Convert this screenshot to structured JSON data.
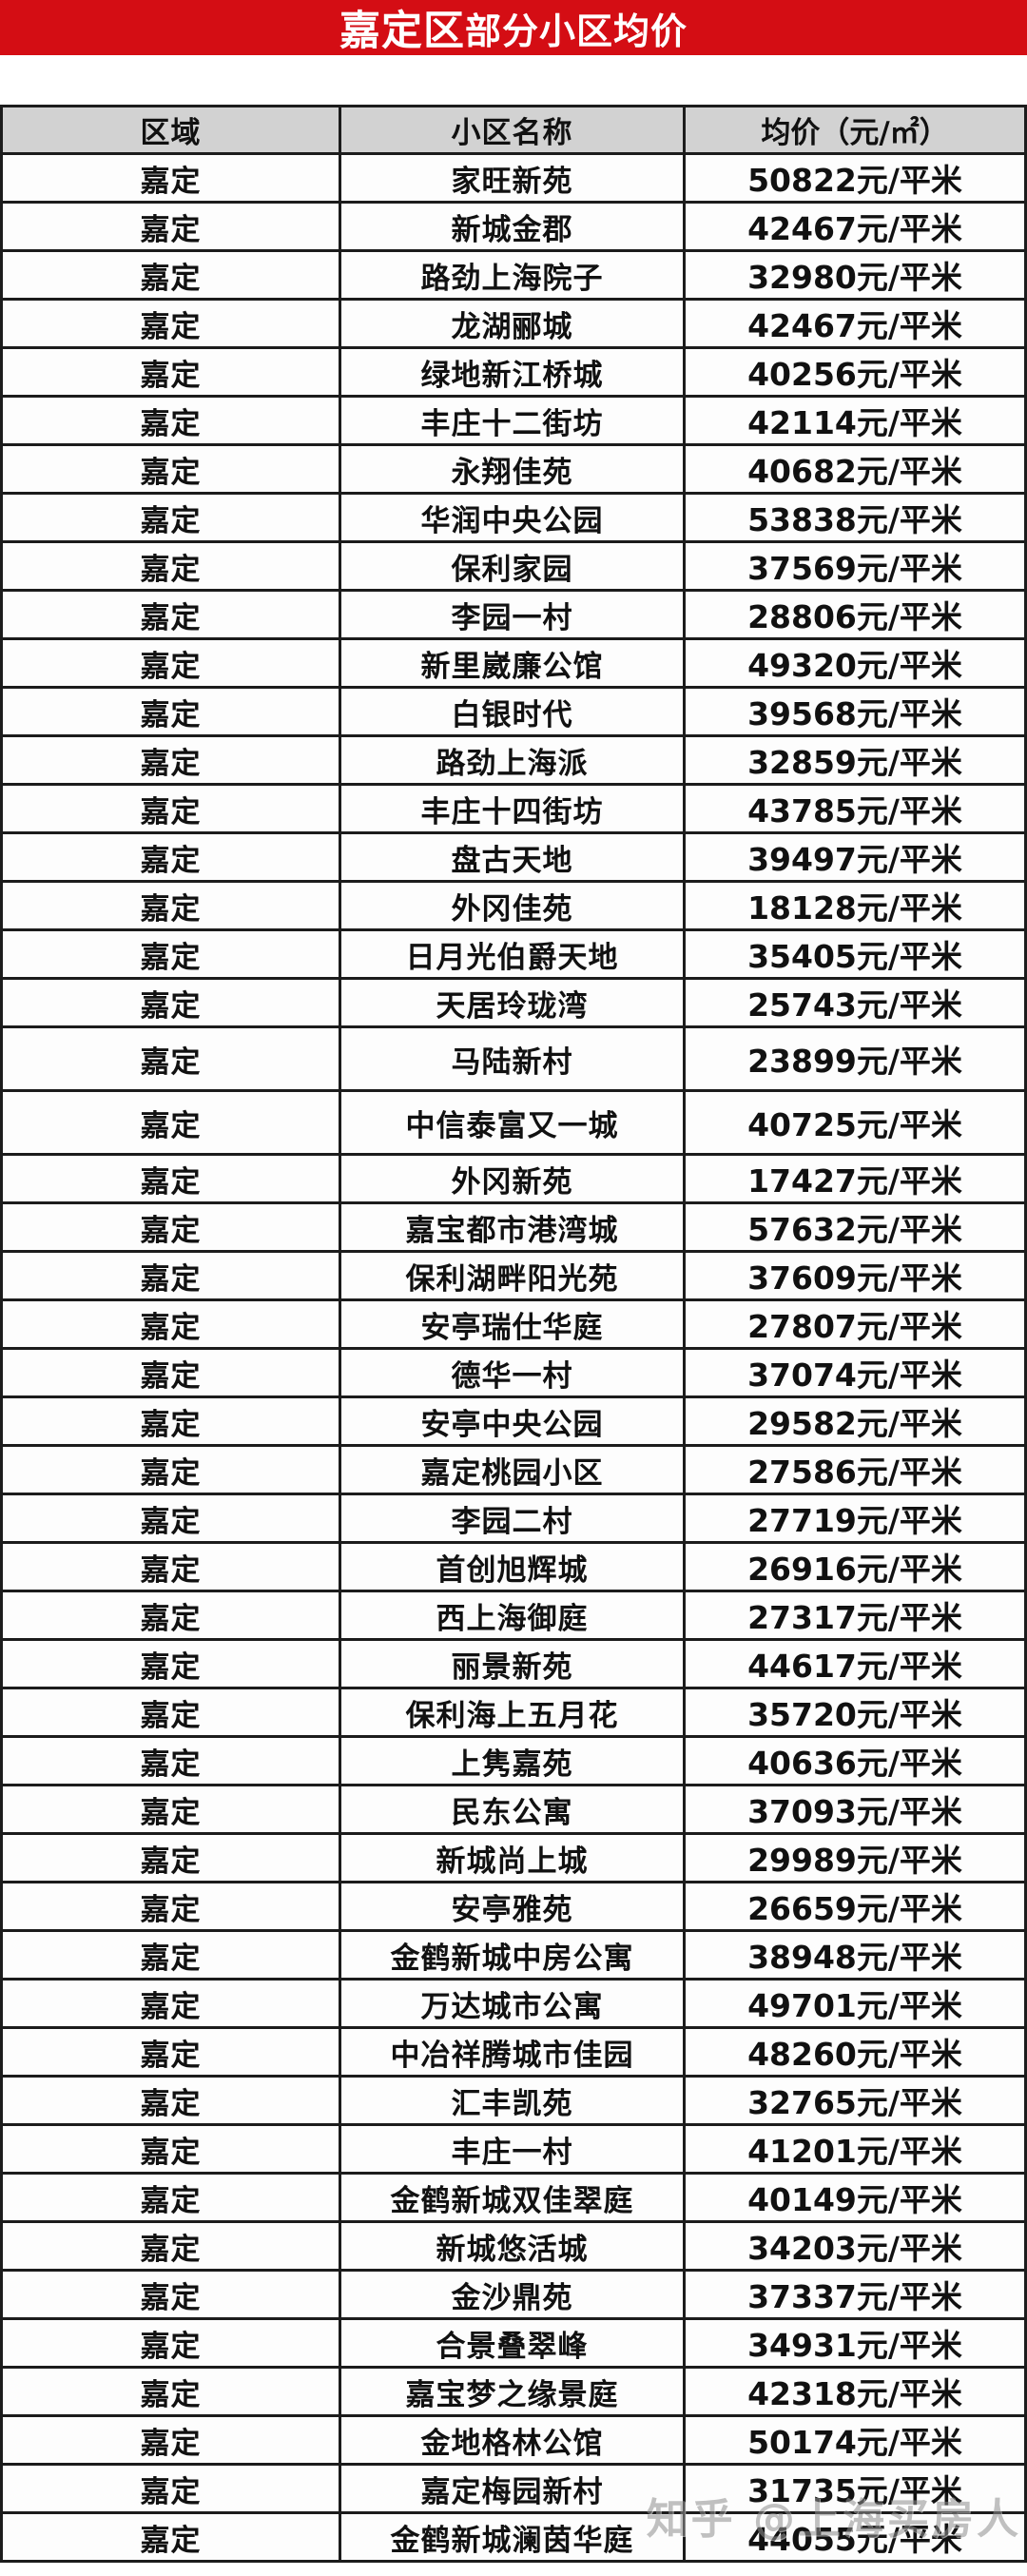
{
  "title": {
    "prefix": "嘉定区",
    "suffix": "部分小区均价"
  },
  "header": {
    "columns": [
      "区域",
      "小区名称",
      "均价（元/㎡）"
    ]
  },
  "watermark": "知乎 @上海买房人",
  "colors": {
    "accent_red": "#d40d14",
    "header_gray": "#d2d2d2",
    "border_color": "#1c1c1c"
  },
  "display": {
    "price_suffix": "元/平米",
    "tall_row_indices": [
      18,
      19
    ]
  },
  "chart_data": {
    "type": "table",
    "title": "嘉定区部分小区均价",
    "columns": [
      "区域",
      "小区名称",
      "均价（元/㎡）"
    ],
    "unit": "元/平米",
    "rows": [
      [
        "嘉定",
        "家旺新苑",
        50822
      ],
      [
        "嘉定",
        "新城金郡",
        42467
      ],
      [
        "嘉定",
        "路劲上海院子",
        32980
      ],
      [
        "嘉定",
        "龙湖郦城",
        42467
      ],
      [
        "嘉定",
        "绿地新江桥城",
        40256
      ],
      [
        "嘉定",
        "丰庄十二街坊",
        42114
      ],
      [
        "嘉定",
        "永翔佳苑",
        40682
      ],
      [
        "嘉定",
        "华润中央公园",
        53838
      ],
      [
        "嘉定",
        "保利家园",
        37569
      ],
      [
        "嘉定",
        "李园一村",
        28806
      ],
      [
        "嘉定",
        "新里崴廉公馆",
        49320
      ],
      [
        "嘉定",
        "白银时代",
        39568
      ],
      [
        "嘉定",
        "路劲上海派",
        32859
      ],
      [
        "嘉定",
        "丰庄十四街坊",
        43785
      ],
      [
        "嘉定",
        "盘古天地",
        39497
      ],
      [
        "嘉定",
        "外冈佳苑",
        18128
      ],
      [
        "嘉定",
        "日月光伯爵天地",
        35405
      ],
      [
        "嘉定",
        "天居玲珑湾",
        25743
      ],
      [
        "嘉定",
        "马陆新村",
        23899
      ],
      [
        "嘉定",
        "中信泰富又一城",
        40725
      ],
      [
        "嘉定",
        "外冈新苑",
        17427
      ],
      [
        "嘉定",
        "嘉宝都市港湾城",
        57632
      ],
      [
        "嘉定",
        "保利湖畔阳光苑",
        37609
      ],
      [
        "嘉定",
        "安亭瑞仕华庭",
        27807
      ],
      [
        "嘉定",
        "德华一村",
        37074
      ],
      [
        "嘉定",
        "安亭中央公园",
        29582
      ],
      [
        "嘉定",
        "嘉定桃园小区",
        27586
      ],
      [
        "嘉定",
        "李园二村",
        27719
      ],
      [
        "嘉定",
        "首创旭辉城",
        26916
      ],
      [
        "嘉定",
        "西上海御庭",
        27317
      ],
      [
        "嘉定",
        "丽景新苑",
        44617
      ],
      [
        "嘉定",
        "保利海上五月花",
        35720
      ],
      [
        "嘉定",
        "上隽嘉苑",
        40636
      ],
      [
        "嘉定",
        "民东公寓",
        37093
      ],
      [
        "嘉定",
        "新城尚上城",
        29989
      ],
      [
        "嘉定",
        "安亭雅苑",
        26659
      ],
      [
        "嘉定",
        "金鹤新城中房公寓",
        38948
      ],
      [
        "嘉定",
        "万达城市公寓",
        49701
      ],
      [
        "嘉定",
        "中冶祥腾城市佳园",
        48260
      ],
      [
        "嘉定",
        "汇丰凯苑",
        32765
      ],
      [
        "嘉定",
        "丰庄一村",
        41201
      ],
      [
        "嘉定",
        "金鹤新城双佳翠庭",
        40149
      ],
      [
        "嘉定",
        "新城悠活城",
        34203
      ],
      [
        "嘉定",
        "金沙鼎苑",
        37337
      ],
      [
        "嘉定",
        "合景叠翠峰",
        34931
      ],
      [
        "嘉定",
        "嘉宝梦之缘景庭",
        42318
      ],
      [
        "嘉定",
        "金地格林公馆",
        50174
      ],
      [
        "嘉定",
        "嘉定梅园新村",
        31735
      ],
      [
        "嘉定",
        "金鹤新城澜茵华庭",
        44055
      ]
    ]
  }
}
